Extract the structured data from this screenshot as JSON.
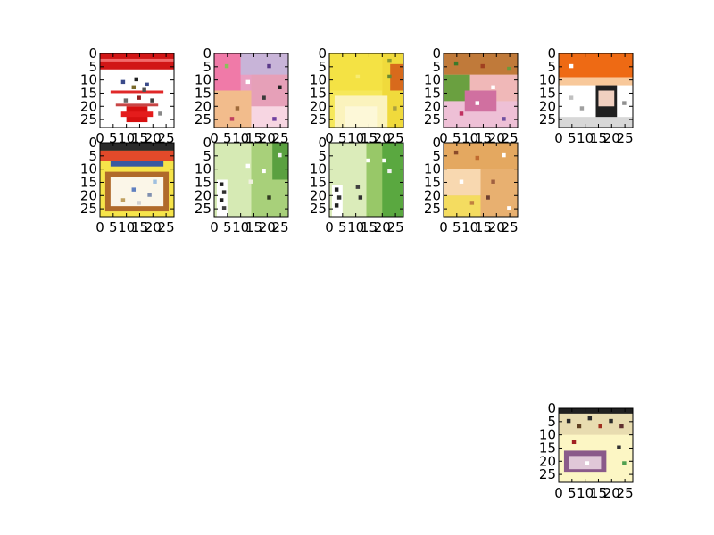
{
  "figure": {
    "background": "#ffffff"
  },
  "chart_data": [
    {
      "type": "heatmap",
      "panel": "thumbnail-1",
      "xticks": [
        "0",
        "5",
        "10",
        "15",
        "20",
        "25"
      ],
      "yticks": [
        "0",
        "5",
        "10",
        "15",
        "20",
        "25"
      ],
      "xlim": [
        0,
        28
      ],
      "ylim": [
        28,
        0
      ],
      "grid": false,
      "content": {
        "base": "#ffffff",
        "regions": [
          {
            "x": [
              0,
              28
            ],
            "y": [
              0,
              6
            ],
            "color": "#d11616"
          },
          {
            "x": [
              0,
              28
            ],
            "y": [
              2,
              3
            ],
            "color": "#f26b6b"
          },
          {
            "x": [
              4,
              24
            ],
            "y": [
              14,
              15
            ],
            "color": "#e02828"
          },
          {
            "x": [
              6,
              22
            ],
            "y": [
              19,
              20
            ],
            "color": "#c84646"
          },
          {
            "x": [
              10,
              18
            ],
            "y": [
              20,
              26
            ],
            "color": "#d61010"
          },
          {
            "x": [
              8,
              20
            ],
            "y": [
              22,
              24
            ],
            "color": "#e41c1c"
          }
        ],
        "dots": [
          [
            8,
            10,
            "#3a4a8a"
          ],
          [
            13,
            9,
            "#202020"
          ],
          [
            17,
            11,
            "#3a4a8a"
          ],
          [
            12,
            12,
            "#7a6a2a"
          ],
          [
            16,
            13,
            "#505050"
          ],
          [
            9,
            17,
            "#6a6a6a"
          ],
          [
            19,
            17,
            "#404040"
          ],
          [
            14,
            16,
            "#902020"
          ],
          [
            22,
            22,
            "#888888"
          ]
        ]
      }
    },
    {
      "type": "heatmap",
      "panel": "thumbnail-2",
      "xticks": [
        "0",
        "5",
        "10",
        "15",
        "20",
        "25"
      ],
      "yticks": [
        "0",
        "5",
        "10",
        "15",
        "20",
        "25"
      ],
      "xlim": [
        0,
        28
      ],
      "ylim": [
        28,
        0
      ],
      "grid": false,
      "content": {
        "base": "#e9a0c2",
        "regions": [
          {
            "x": [
              0,
              10
            ],
            "y": [
              0,
              14
            ],
            "color": "#f07aa8"
          },
          {
            "x": [
              10,
              28
            ],
            "y": [
              0,
              8
            ],
            "color": "#c8b4d8"
          },
          {
            "x": [
              14,
              28
            ],
            "y": [
              8,
              20
            ],
            "color": "#e6a0b8"
          },
          {
            "x": [
              0,
              14
            ],
            "y": [
              14,
              28
            ],
            "color": "#f2bc8c"
          },
          {
            "x": [
              14,
              28
            ],
            "y": [
              20,
              28
            ],
            "color": "#f7d6e2"
          }
        ],
        "dots": [
          [
            4,
            4,
            "#8ac05a"
          ],
          [
            20,
            4,
            "#5a3a8a"
          ],
          [
            24,
            12,
            "#202020"
          ],
          [
            18,
            16,
            "#3a3a3a"
          ],
          [
            8,
            20,
            "#a06a3a"
          ],
          [
            22,
            24,
            "#7040a0"
          ],
          [
            12,
            10,
            "#ffffff"
          ],
          [
            6,
            24,
            "#c04060"
          ]
        ]
      }
    },
    {
      "type": "heatmap",
      "panel": "thumbnail-3",
      "xticks": [
        "0",
        "5",
        "10",
        "15",
        "20",
        "25"
      ],
      "yticks": [
        "0",
        "5",
        "10",
        "15",
        "20",
        "25"
      ],
      "xlim": [
        0,
        28
      ],
      "ylim": [
        28,
        0
      ],
      "grid": false,
      "content": {
        "base": "#f6e85a",
        "regions": [
          {
            "x": [
              0,
              20
            ],
            "y": [
              0,
              14
            ],
            "color": "#f4e244"
          },
          {
            "x": [
              20,
              28
            ],
            "y": [
              0,
              28
            ],
            "color": "#f0da3c"
          },
          {
            "x": [
              23,
              28
            ],
            "y": [
              4,
              14
            ],
            "color": "#d86a1c"
          },
          {
            "x": [
              2,
              22
            ],
            "y": [
              16,
              28
            ],
            "color": "#fbf3bd"
          },
          {
            "x": [
              6,
              18
            ],
            "y": [
              20,
              28
            ],
            "color": "#fdf8d8"
          }
        ],
        "dots": [
          [
            22,
            2,
            "#8a9a30"
          ],
          [
            22,
            8,
            "#6a8a30"
          ],
          [
            24,
            20,
            "#aaa040"
          ],
          [
            10,
            8,
            "#f8ec70"
          ]
        ]
      }
    },
    {
      "type": "heatmap",
      "panel": "thumbnail-4",
      "xticks": [
        "0",
        "5",
        "10",
        "15",
        "20",
        "25"
      ],
      "yticks": [
        "0",
        "5",
        "10",
        "15",
        "20",
        "25"
      ],
      "xlim": [
        0,
        28
      ],
      "ylim": [
        28,
        0
      ],
      "grid": false,
      "content": {
        "base": "#e8c0a8",
        "regions": [
          {
            "x": [
              0,
              28
            ],
            "y": [
              0,
              8
            ],
            "color": "#c07a3a"
          },
          {
            "x": [
              0,
              10
            ],
            "y": [
              8,
              20
            ],
            "color": "#6aa040"
          },
          {
            "x": [
              10,
              28
            ],
            "y": [
              8,
              18
            ],
            "color": "#f0b8b8"
          },
          {
            "x": [
              0,
              28
            ],
            "y": [
              18,
              28
            ],
            "color": "#eec0d6"
          },
          {
            "x": [
              8,
              20
            ],
            "y": [
              14,
              22
            ],
            "color": "#d070a0"
          }
        ],
        "dots": [
          [
            4,
            3,
            "#3a7a2a"
          ],
          [
            14,
            4,
            "#a04020"
          ],
          [
            24,
            5,
            "#6a9a3a"
          ],
          [
            18,
            12,
            "#ffffff"
          ],
          [
            6,
            22,
            "#c03060"
          ],
          [
            22,
            24,
            "#7050a0"
          ],
          [
            12,
            18,
            "#ffffff"
          ]
        ]
      }
    },
    {
      "type": "heatmap",
      "panel": "thumbnail-5",
      "xticks": [
        "0",
        "5",
        "10",
        "15",
        "20",
        "25"
      ],
      "yticks": [
        "0",
        "5",
        "10",
        "15",
        "20",
        "25"
      ],
      "xlim": [
        0,
        28
      ],
      "ylim": [
        28,
        0
      ],
      "grid": false,
      "content": {
        "base": "#ffffff",
        "regions": [
          {
            "x": [
              0,
              28
            ],
            "y": [
              0,
              9
            ],
            "color": "#ee6a14"
          },
          {
            "x": [
              0,
              28
            ],
            "y": [
              9,
              12
            ],
            "color": "#f8c89a"
          },
          {
            "x": [
              14,
              22
            ],
            "y": [
              12,
              26
            ],
            "color": "#202020"
          },
          {
            "x": [
              15,
              21
            ],
            "y": [
              14,
              20
            ],
            "color": "#f0d0c0"
          },
          {
            "x": [
              0,
              28
            ],
            "y": [
              24,
              28
            ],
            "color": "#d8d8d8"
          }
        ],
        "dots": [
          [
            4,
            16,
            "#c0c0c0"
          ],
          [
            8,
            20,
            "#a0a0a0"
          ],
          [
            24,
            18,
            "#909090"
          ],
          [
            4,
            4,
            "#ffffff"
          ]
        ]
      }
    },
    {
      "type": "heatmap",
      "panel": "thumbnail-6",
      "xticks": [
        "0",
        "5",
        "10",
        "15",
        "20",
        "25"
      ],
      "yticks": [
        "0",
        "5",
        "10",
        "15",
        "20",
        "25"
      ],
      "xlim": [
        0,
        28
      ],
      "ylim": [
        28,
        0
      ],
      "grid": false,
      "content": {
        "base": "#f6e44a",
        "regions": [
          {
            "x": [
              0,
              28
            ],
            "y": [
              0,
              3
            ],
            "color": "#2a2a2a"
          },
          {
            "x": [
              0,
              28
            ],
            "y": [
              3,
              7
            ],
            "color": "#e24a2a"
          },
          {
            "x": [
              4,
              24
            ],
            "y": [
              7,
              9
            ],
            "color": "#3a5aa0"
          },
          {
            "x": [
              2,
              26
            ],
            "y": [
              11,
              26
            ],
            "color": "#b06a2a"
          },
          {
            "x": [
              4,
              24
            ],
            "y": [
              13,
              24
            ],
            "color": "#fbf6e8"
          }
        ],
        "dots": [
          [
            12,
            17,
            "#6080c0"
          ],
          [
            18,
            19,
            "#8090b0"
          ],
          [
            8,
            21,
            "#c0a060"
          ],
          [
            20,
            14,
            "#a0c0e0"
          ],
          [
            14,
            22,
            "#d0d0d0"
          ]
        ]
      }
    },
    {
      "type": "heatmap",
      "panel": "thumbnail-7",
      "xticks": [
        "0",
        "5",
        "10",
        "15",
        "20",
        "25"
      ],
      "yticks": [
        "0",
        "5",
        "10",
        "15",
        "20",
        "25"
      ],
      "xlim": [
        0,
        28
      ],
      "ylim": [
        28,
        0
      ],
      "grid": false,
      "content": {
        "base": "#c8e2a0",
        "regions": [
          {
            "x": [
              0,
              14
            ],
            "y": [
              0,
              28
            ],
            "color": "#d6eab4"
          },
          {
            "x": [
              14,
              28
            ],
            "y": [
              0,
              28
            ],
            "color": "#a8d07a"
          },
          {
            "x": [
              22,
              28
            ],
            "y": [
              0,
              14
            ],
            "color": "#5aa040"
          },
          {
            "x": [
              1,
              5
            ],
            "y": [
              14,
              28
            ],
            "color": "#ffffff"
          }
        ],
        "dots": [
          [
            2,
            15,
            "#202020"
          ],
          [
            3,
            18,
            "#303030"
          ],
          [
            2,
            21,
            "#202020"
          ],
          [
            3,
            24,
            "#404040"
          ],
          [
            12,
            8,
            "#ffffff"
          ],
          [
            13,
            14,
            "#f0f0e0"
          ],
          [
            18,
            10,
            "#ffffff"
          ],
          [
            20,
            20,
            "#303a20"
          ],
          [
            24,
            4,
            "#f0f0f0"
          ]
        ]
      }
    },
    {
      "type": "heatmap",
      "panel": "thumbnail-8",
      "xticks": [
        "0",
        "5",
        "10",
        "15",
        "20",
        "25"
      ],
      "yticks": [
        "0",
        "5",
        "10",
        "15",
        "20",
        "25"
      ],
      "xlim": [
        0,
        28
      ],
      "ylim": [
        28,
        0
      ],
      "grid": false,
      "content": {
        "base": "#c8e2a0",
        "regions": [
          {
            "x": [
              0,
              14
            ],
            "y": [
              0,
              28
            ],
            "color": "#dbecba"
          },
          {
            "x": [
              14,
              28
            ],
            "y": [
              0,
              28
            ],
            "color": "#98c868"
          },
          {
            "x": [
              20,
              28
            ],
            "y": [
              0,
              28
            ],
            "color": "#5aa840"
          },
          {
            "x": [
              1,
              5
            ],
            "y": [
              16,
              28
            ],
            "color": "#ffffff"
          }
        ],
        "dots": [
          [
            2,
            17,
            "#202020"
          ],
          [
            3,
            20,
            "#303030"
          ],
          [
            2,
            23,
            "#202020"
          ],
          [
            10,
            16,
            "#404040"
          ],
          [
            11,
            20,
            "#303030"
          ],
          [
            20,
            6,
            "#ffffff"
          ],
          [
            22,
            10,
            "#f0f0f0"
          ],
          [
            14,
            6,
            "#ffffff"
          ]
        ]
      }
    },
    {
      "type": "heatmap",
      "panel": "thumbnail-9",
      "xticks": [
        "0",
        "5",
        "10",
        "15",
        "20",
        "25"
      ],
      "yticks": [
        "0",
        "5",
        "10",
        "15",
        "20",
        "25"
      ],
      "xlim": [
        0,
        28
      ],
      "ylim": [
        28,
        0
      ],
      "grid": false,
      "content": {
        "base": "#f0c090",
        "regions": [
          {
            "x": [
              0,
              28
            ],
            "y": [
              0,
              10
            ],
            "color": "#e4a860"
          },
          {
            "x": [
              0,
              14
            ],
            "y": [
              10,
              20
            ],
            "color": "#f8d8b0"
          },
          {
            "x": [
              14,
              28
            ],
            "y": [
              10,
              28
            ],
            "color": "#e8b070"
          },
          {
            "x": [
              0,
              14
            ],
            "y": [
              20,
              28
            ],
            "color": "#f4dc60"
          }
        ],
        "dots": [
          [
            4,
            3,
            "#8a4a2a"
          ],
          [
            12,
            5,
            "#c06a30"
          ],
          [
            22,
            4,
            "#ffffff"
          ],
          [
            18,
            14,
            "#a06040"
          ],
          [
            6,
            14,
            "#ffffff"
          ],
          [
            10,
            22,
            "#c08040"
          ],
          [
            24,
            24,
            "#ffffff"
          ],
          [
            16,
            20,
            "#704030"
          ]
        ]
      }
    },
    {
      "type": "heatmap",
      "panel": "thumbnail-10",
      "xticks": [
        "0",
        "5",
        "10",
        "15",
        "20",
        "25"
      ],
      "yticks": [
        "0",
        "5",
        "10",
        "15",
        "20",
        "25"
      ],
      "xlim": [
        0,
        28
      ],
      "ylim": [
        28,
        0
      ],
      "grid": false,
      "content": {
        "base": "#fcf6c4",
        "regions": [
          {
            "x": [
              0,
              28
            ],
            "y": [
              0,
              2
            ],
            "color": "#202020"
          },
          {
            "x": [
              0,
              28
            ],
            "y": [
              2,
              10
            ],
            "color": "#e8dcb0"
          },
          {
            "x": [
              2,
              18
            ],
            "y": [
              16,
              24
            ],
            "color": "#8a5a8a"
          },
          {
            "x": [
              4,
              16
            ],
            "y": [
              18,
              23
            ],
            "color": "#e0c8d8"
          }
        ],
        "dots": [
          [
            3,
            4,
            "#2a2a2a"
          ],
          [
            7,
            6,
            "#604020"
          ],
          [
            11,
            3,
            "#2a2a2a"
          ],
          [
            15,
            6,
            "#a03020"
          ],
          [
            19,
            4,
            "#2a2a2a"
          ],
          [
            23,
            6,
            "#603030"
          ],
          [
            5,
            12,
            "#a02020"
          ],
          [
            22,
            14,
            "#303030"
          ],
          [
            24,
            20,
            "#50a050"
          ],
          [
            10,
            20,
            "#ffffff"
          ]
        ]
      }
    }
  ]
}
